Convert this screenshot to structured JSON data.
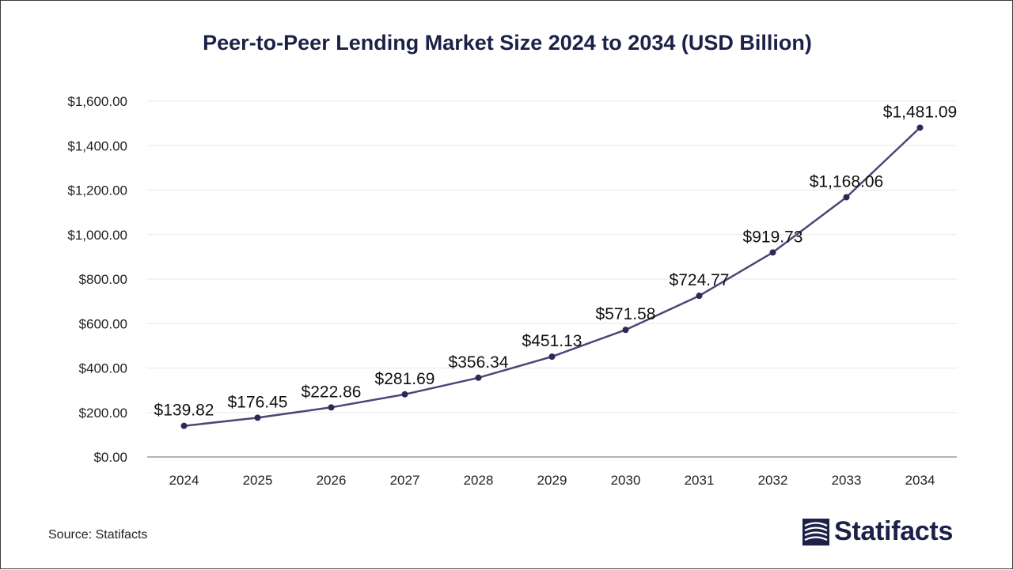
{
  "title": "Peer-to-Peer Lending Market Size 2024 to 2034 (USD Billion)",
  "source": "Source: Statifacts",
  "logo_text": "Statifacts",
  "colors": {
    "line": "#4a4775",
    "marker": "#2b2a55",
    "title": "#1b2147",
    "grid": "#e8e8e8",
    "axis": "#9a9a9a"
  },
  "chart_data": {
    "type": "line",
    "title": "Peer-to-Peer Lending Market Size 2024 to 2034 (USD Billion)",
    "xlabel": "",
    "ylabel": "",
    "categories": [
      "2024",
      "2025",
      "2026",
      "2027",
      "2028",
      "2029",
      "2030",
      "2031",
      "2032",
      "2033",
      "2034"
    ],
    "values": [
      139.82,
      176.45,
      222.86,
      281.69,
      356.34,
      451.13,
      571.58,
      724.77,
      919.73,
      1168.06,
      1481.09
    ],
    "data_labels": [
      "$139.82",
      "$176.45",
      "$222.86",
      "$281.69",
      "$356.34",
      "$451.13",
      "$571.58",
      "$724.77",
      "$919.73",
      "$1,168.06",
      "$1,481.09"
    ],
    "ylim": [
      0,
      1600
    ],
    "yticks": [
      0,
      200,
      400,
      600,
      800,
      1000,
      1200,
      1400,
      1600
    ],
    "ytick_labels": [
      "$0.00",
      "$200.00",
      "$400.00",
      "$600.00",
      "$800.00",
      "$1,000.00",
      "$1,200.00",
      "$1,400.00",
      "$1,600.00"
    ],
    "grid": true,
    "legend": "none"
  }
}
